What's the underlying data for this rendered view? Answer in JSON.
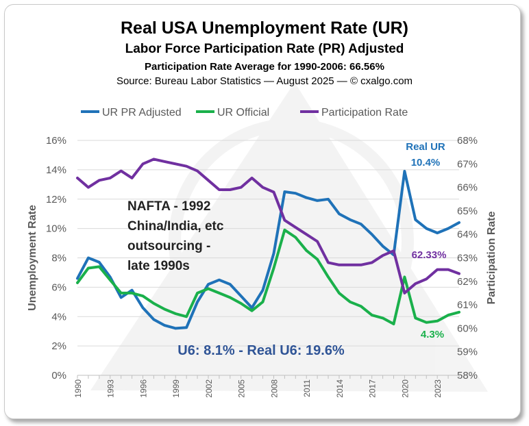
{
  "titles": {
    "main": "Real USA Unemployment Rate (UR)",
    "sub": "Labor Force Participation Rate (PR) Adjusted",
    "avg": "Participation Rate Average for 1990-2006: 66.56%",
    "source": "Source: Bureau Labor Statistics — August 2025 — © cxalgo.com"
  },
  "chart_data": {
    "type": "line",
    "title": "Real USA Unemployment Rate (UR)",
    "ylabel": "Unemployment Rate",
    "y2label": "Participation Rate",
    "ylim": [
      0,
      16
    ],
    "y2lim": [
      58,
      68
    ],
    "y_ticks": [
      "0%",
      "2%",
      "4%",
      "6%",
      "8%",
      "10%",
      "12%",
      "14%",
      "16%"
    ],
    "y2_ticks": [
      "58%",
      "59%",
      "60%",
      "61%",
      "62%",
      "63%",
      "64%",
      "65%",
      "66%",
      "67%",
      "68%"
    ],
    "x_ticks": [
      "1990",
      "1993",
      "1996",
      "1999",
      "2002",
      "2005",
      "2008",
      "2011",
      "2014",
      "2017",
      "2020",
      "2023"
    ],
    "legend": [
      "UR PR Adjusted",
      "UR Official",
      "Participation Rate"
    ],
    "colors": {
      "ur_adj": "#1f72b8",
      "ur_off": "#1ab04b",
      "pr": "#7030a0",
      "axis_text": "#595959",
      "grid": "#d9d9d9"
    },
    "x": [
      1990,
      1991,
      1992,
      1993,
      1994,
      1995,
      1996,
      1997,
      1998,
      1999,
      2000,
      2001,
      2002,
      2003,
      2004,
      2005,
      2006,
      2007,
      2008,
      2009,
      2010,
      2011,
      2012,
      2013,
      2014,
      2015,
      2016,
      2017,
      2018,
      2019,
      2020,
      2021,
      2022,
      2023,
      2024,
      2025
    ],
    "series": [
      {
        "name": "UR PR Adjusted",
        "axis": "left",
        "values": [
          6.6,
          8.0,
          7.7,
          6.7,
          5.3,
          5.8,
          4.6,
          3.8,
          3.4,
          3.2,
          3.25,
          5.0,
          6.2,
          6.5,
          6.2,
          5.4,
          4.6,
          5.8,
          8.3,
          12.5,
          12.4,
          12.1,
          11.9,
          12.0,
          11.0,
          10.6,
          10.3,
          9.6,
          8.8,
          8.2,
          13.9,
          10.6,
          10.0,
          9.7,
          10.0,
          10.4
        ]
      },
      {
        "name": "UR Official",
        "axis": "left",
        "values": [
          6.3,
          7.3,
          7.4,
          6.5,
          5.6,
          5.6,
          5.4,
          4.9,
          4.5,
          4.2,
          4.0,
          5.6,
          5.9,
          5.6,
          5.3,
          4.9,
          4.4,
          5.0,
          7.3,
          9.9,
          9.4,
          8.5,
          7.9,
          6.7,
          5.6,
          5.0,
          4.7,
          4.1,
          3.9,
          3.5,
          6.7,
          3.9,
          3.6,
          3.7,
          4.1,
          4.3
        ]
      },
      {
        "name": "Participation Rate",
        "axis": "right",
        "values": [
          66.4,
          66.0,
          66.3,
          66.4,
          66.7,
          66.4,
          67.0,
          67.2,
          67.1,
          67.0,
          66.9,
          66.7,
          66.3,
          65.9,
          65.9,
          66.0,
          66.4,
          66.0,
          65.8,
          64.6,
          64.3,
          64.0,
          63.7,
          62.8,
          62.7,
          62.7,
          62.7,
          62.8,
          63.1,
          63.3,
          61.5,
          61.9,
          62.1,
          62.5,
          62.5,
          62.33
        ]
      }
    ],
    "annotations": {
      "real_ur_label": "Real UR",
      "real_ur_value": "10.4%",
      "pr_value": "62.33%",
      "official_value": "4.3%",
      "nafta": [
        "NAFTA - 1992",
        "China/India, etc",
        "outsourcing -",
        "late 1990s"
      ],
      "u6": "U6: 8.1% - Real U6: 19.6%"
    }
  }
}
